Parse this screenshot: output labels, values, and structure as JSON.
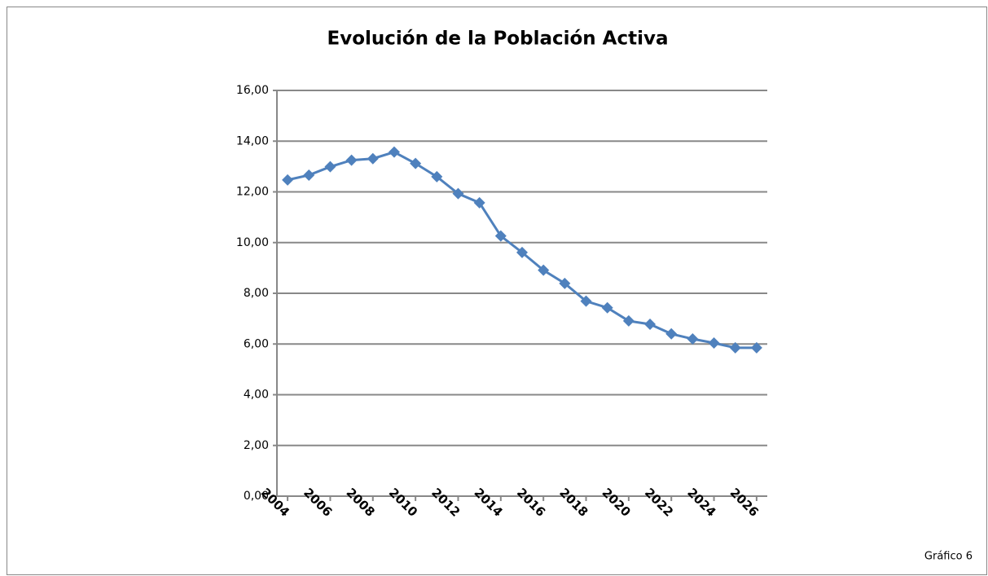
{
  "chart_data": {
    "type": "line",
    "title": "Evolución de la Población Activa",
    "caption": "Gráfico 6",
    "x": [
      2004,
      2005,
      2006,
      2007,
      2008,
      2009,
      2010,
      2011,
      2012,
      2013,
      2014,
      2015,
      2016,
      2017,
      2018,
      2019,
      2020,
      2021,
      2022,
      2023,
      2024,
      2025,
      2026
    ],
    "series": [
      {
        "name": "Población Activa",
        "color": "#4f81bd",
        "values": [
          12.47,
          12.66,
          12.99,
          13.25,
          13.31,
          13.57,
          13.12,
          12.6,
          11.93,
          11.57,
          10.26,
          9.61,
          8.91,
          8.39,
          7.69,
          7.43,
          6.91,
          6.78,
          6.4,
          6.2,
          6.04,
          5.85,
          5.85
        ]
      }
    ],
    "xlim": [
      2003.5,
      2026.5
    ],
    "xticks": [
      2004,
      2006,
      2008,
      2010,
      2012,
      2014,
      2016,
      2018,
      2020,
      2022,
      2024,
      2026
    ],
    "ylim": [
      0,
      16
    ],
    "yticks": [
      {
        "value": 0,
        "label": "0,00"
      },
      {
        "value": 2,
        "label": "2,00"
      },
      {
        "value": 4,
        "label": "4,00"
      },
      {
        "value": 6,
        "label": "6,00"
      },
      {
        "value": 8,
        "label": "8,00"
      },
      {
        "value": 10,
        "label": "10,00"
      },
      {
        "value": 12,
        "label": "12,00"
      },
      {
        "value": 14,
        "label": "14,00"
      },
      {
        "value": 16,
        "label": "16,00"
      }
    ],
    "grid": true
  }
}
